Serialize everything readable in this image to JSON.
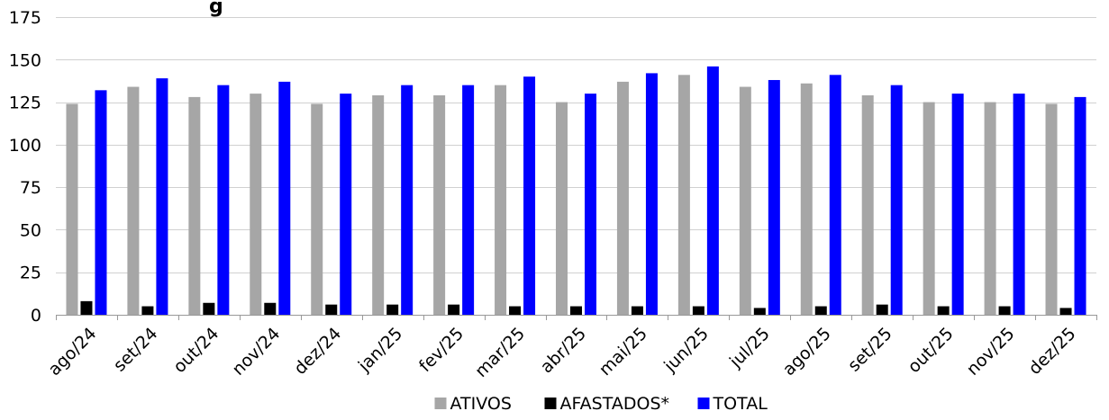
{
  "chart_data": {
    "type": "bar",
    "title": "g",
    "xlabel": "",
    "ylabel": "",
    "ylim": [
      0,
      175
    ],
    "yticks": [
      0,
      25,
      50,
      75,
      100,
      125,
      150,
      175
    ],
    "grid": true,
    "legend_position": "bottom",
    "categories": [
      "ago/24",
      "set/24",
      "out/24",
      "nov/24",
      "dez/24",
      "jan/25",
      "fev/25",
      "mar/25",
      "abr/25",
      "mai/25",
      "jun/25",
      "jul/25",
      "ago/25",
      "set/25",
      "out/25",
      "nov/25",
      "dez/25"
    ],
    "series": [
      {
        "name": "ATIVOS",
        "color": "#a6a6a6",
        "values": [
          124,
          134,
          128,
          130,
          124,
          129,
          129,
          135,
          125,
          137,
          141,
          134,
          136,
          129,
          125,
          125,
          124
        ]
      },
      {
        "name": "AFASTADOS*",
        "color": "#000000",
        "values": [
          8,
          5,
          7,
          7,
          6,
          6,
          6,
          5,
          5,
          5,
          5,
          4,
          5,
          6,
          5,
          5,
          4
        ]
      },
      {
        "name": "TOTAL",
        "color": "#0000ff",
        "values": [
          132,
          139,
          135,
          137,
          130,
          135,
          135,
          140,
          130,
          142,
          146,
          138,
          141,
          135,
          130,
          130,
          128
        ]
      }
    ]
  }
}
